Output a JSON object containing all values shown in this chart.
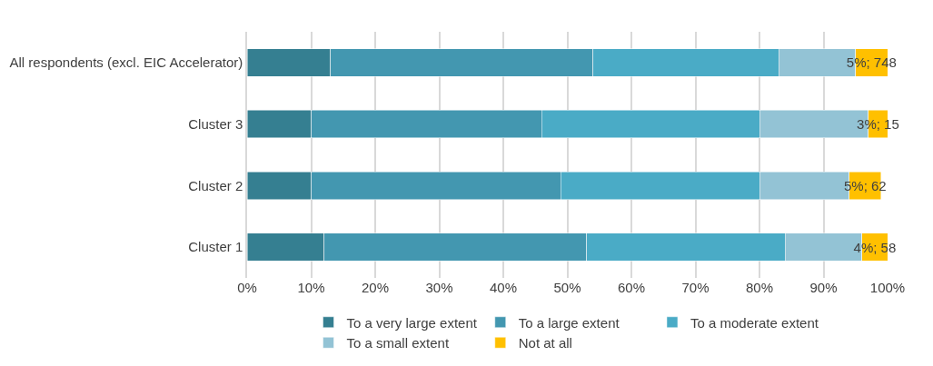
{
  "chart_data": {
    "type": "bar",
    "orientation": "horizontal",
    "stacked": true,
    "categories": [
      "All respondents (excl. EIC Accelerator)",
      "Cluster 3",
      "Cluster 2",
      "Cluster 1"
    ],
    "series": [
      {
        "name": "To a very large extent",
        "color": "#357f91",
        "values": [
          13,
          10,
          10,
          12
        ]
      },
      {
        "name": "To a large extent",
        "color": "#4397b0",
        "values": [
          41,
          36,
          39,
          41
        ]
      },
      {
        "name": "To a moderate extent",
        "color": "#4aabc6",
        "values": [
          29,
          34,
          31,
          31
        ]
      },
      {
        "name": "To a small extent",
        "color": "#93c3d5",
        "values": [
          12,
          17,
          14,
          12
        ]
      },
      {
        "name": "Not at all",
        "color": "#ffc000",
        "values": [
          5,
          3,
          5,
          4
        ],
        "value_labels": [
          "5%; 748",
          "3%; 15",
          "5%; 62",
          "4%; 58"
        ]
      }
    ],
    "xlim": [
      0,
      100
    ],
    "xticks": [
      {
        "value": 0,
        "label": "0%"
      },
      {
        "value": 10,
        "label": "10%"
      },
      {
        "value": 20,
        "label": "20%"
      },
      {
        "value": 30,
        "label": "30%"
      },
      {
        "value": 40,
        "label": "40%"
      },
      {
        "value": 50,
        "label": "50%"
      },
      {
        "value": 60,
        "label": "60%"
      },
      {
        "value": 70,
        "label": "70%"
      },
      {
        "value": 80,
        "label": "80%"
      },
      {
        "value": 90,
        "label": "90%"
      },
      {
        "value": 100,
        "label": "100%"
      }
    ],
    "grid": "x",
    "legend": "bottom"
  }
}
